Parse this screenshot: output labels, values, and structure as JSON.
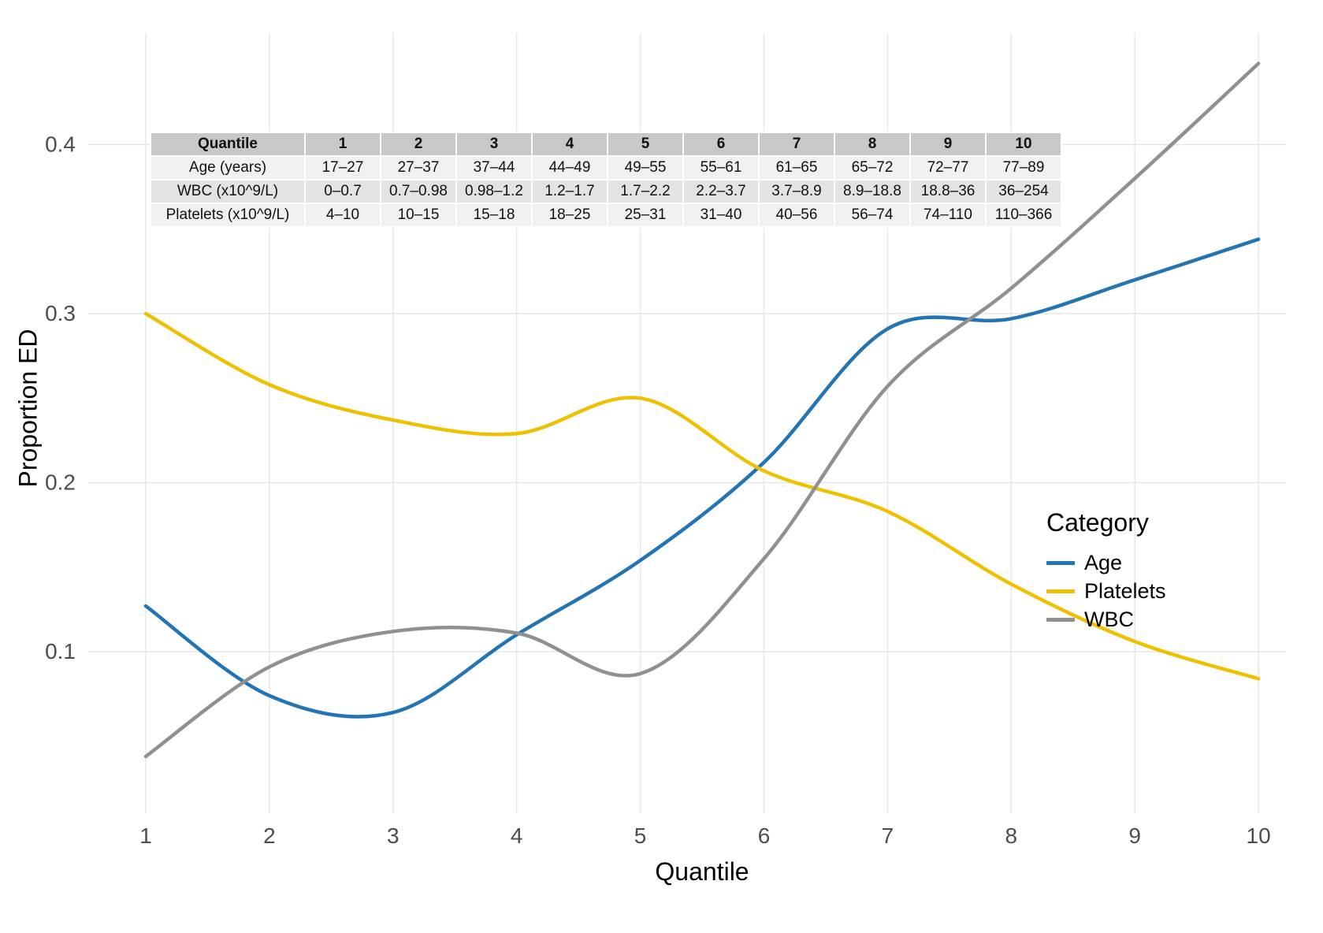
{
  "chart_data": {
    "type": "line",
    "title": "",
    "xlabel": "Quantile",
    "ylabel": "Proportion ED",
    "x": [
      1,
      2,
      3,
      4,
      5,
      6,
      7,
      8,
      9,
      10
    ],
    "xticks": [
      1,
      2,
      3,
      4,
      5,
      6,
      7,
      8,
      9,
      10
    ],
    "yticks": [
      0.1,
      0.2,
      0.3,
      0.4
    ],
    "xlim": [
      0.6,
      10.4
    ],
    "ylim": [
      0.02,
      0.465
    ],
    "grid": true,
    "grid_color": "#e6e6e6",
    "tick_label_color": "#4d4d4d",
    "legend_position": "right",
    "series": [
      {
        "name": "Age",
        "color": "#2274B5",
        "values": [
          0.127,
          0.074,
          0.064,
          0.11,
          0.154,
          0.212,
          0.291,
          0.297,
          0.32,
          0.344
        ]
      },
      {
        "name": "Platelets",
        "color": "#EFC000",
        "values": [
          0.3,
          0.258,
          0.237,
          0.229,
          0.25,
          0.207,
          0.183,
          0.14,
          0.106,
          0.084
        ]
      },
      {
        "name": "WBC",
        "color": "#909090",
        "values": [
          0.038,
          0.091,
          0.112,
          0.111,
          0.087,
          0.155,
          0.257,
          0.315,
          0.38,
          0.448
        ]
      }
    ]
  },
  "legend": {
    "title": "Category",
    "items": [
      {
        "label": "Age",
        "color": "#2274B5"
      },
      {
        "label": "Platelets",
        "color": "#EFC000"
      },
      {
        "label": "WBC",
        "color": "#909090"
      }
    ]
  },
  "table": {
    "header": [
      "Quantile",
      "1",
      "2",
      "3",
      "4",
      "5",
      "6",
      "7",
      "8",
      "9",
      "10"
    ],
    "rows": [
      {
        "label": "Age (years)",
        "values": [
          "17–27",
          "27–37",
          "37–44",
          "44–49",
          "49–55",
          "55–61",
          "61–65",
          "65–72",
          "72–77",
          "77–89"
        ]
      },
      {
        "label": "WBC (x10^9/L)",
        "values": [
          "0–0.7",
          "0.7–0.98",
          "0.98–1.2",
          "1.2–1.7",
          "1.7–2.2",
          "2.2–3.7",
          "3.7–8.9",
          "8.9–18.8",
          "18.8–36",
          "36–254"
        ]
      },
      {
        "label": "Platelets (x10^9/L)",
        "values": [
          "4–10",
          "10–15",
          "15–18",
          "18–25",
          "25–31",
          "31–40",
          "40–56",
          "56–74",
          "74–110",
          "110–366"
        ]
      }
    ]
  }
}
